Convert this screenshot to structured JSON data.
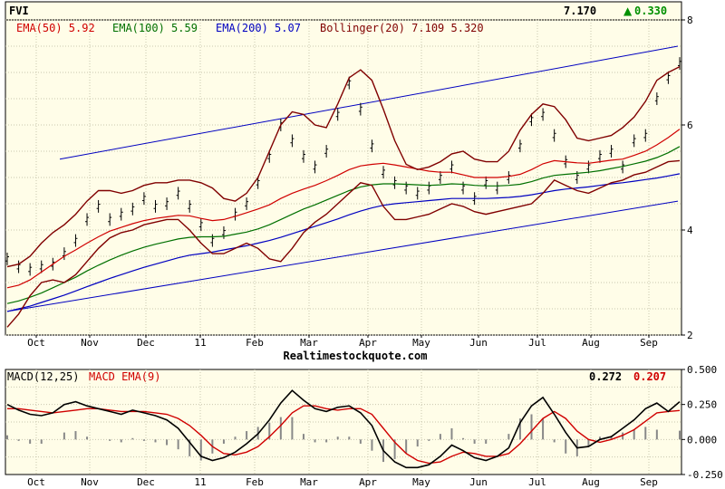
{
  "chart_data": [
    {
      "type": "line",
      "title": "FVI",
      "last_price": "7.170",
      "change_arrow": "▲",
      "change": "0.330",
      "legend": [
        {
          "label": "EMA(50) 5.92",
          "color": "#d00000"
        },
        {
          "label": "EMA(100) 5.59",
          "color": "#007000"
        },
        {
          "label": "EMA(200) 5.07",
          "color": "#0000c0"
        },
        {
          "label": "Bollinger(20) 7.109 5.320",
          "color": "#800000"
        }
      ],
      "xlabel": "Realtimestockquote.com",
      "x_ticks": [
        "Oct",
        "Nov",
        "Dec",
        "11",
        "Feb",
        "Mar",
        "Apr",
        "May",
        "Jun",
        "Jul",
        "Aug",
        "Sep"
      ],
      "y_ticks": [
        2,
        4,
        6,
        8
      ],
      "ylim": [
        2,
        8
      ],
      "grid": true,
      "series": [
        {
          "name": "Price",
          "color": "#000000",
          "values": [
            3.45,
            3.3,
            3.25,
            3.3,
            3.35,
            3.55,
            3.8,
            4.2,
            4.45,
            4.2,
            4.3,
            4.4,
            4.6,
            4.45,
            4.5,
            4.7,
            4.45,
            4.1,
            3.8,
            3.95,
            4.3,
            4.5,
            4.9,
            5.4,
            6.0,
            5.7,
            5.4,
            5.2,
            5.5,
            6.2,
            6.8,
            6.3,
            5.6,
            5.1,
            4.9,
            4.8,
            4.7,
            4.8,
            5.0,
            5.2,
            4.8,
            4.6,
            4.9,
            4.8,
            5.0,
            5.6,
            6.1,
            6.2,
            5.8,
            5.3,
            5.0,
            5.2,
            5.4,
            5.5,
            5.2,
            5.7,
            5.8,
            6.5,
            6.9,
            7.17
          ]
        },
        {
          "name": "EMA(50)",
          "color": "#d00000",
          "values": [
            2.9,
            2.95,
            3.05,
            3.2,
            3.35,
            3.5,
            3.62,
            3.75,
            3.87,
            3.98,
            4.05,
            4.12,
            4.18,
            4.22,
            4.25,
            4.28,
            4.27,
            4.22,
            4.18,
            4.2,
            4.26,
            4.33,
            4.4,
            4.48,
            4.6,
            4.7,
            4.78,
            4.85,
            4.94,
            5.04,
            5.15,
            5.22,
            5.25,
            5.27,
            5.24,
            5.2,
            5.16,
            5.12,
            5.1,
            5.1,
            5.05,
            5.0,
            5.0,
            5.0,
            5.02,
            5.06,
            5.15,
            5.26,
            5.32,
            5.3,
            5.28,
            5.27,
            5.3,
            5.33,
            5.35,
            5.42,
            5.5,
            5.62,
            5.76,
            5.92
          ]
        },
        {
          "name": "EMA(100)",
          "color": "#007000",
          "values": [
            2.6,
            2.65,
            2.72,
            2.8,
            2.9,
            3.0,
            3.1,
            3.22,
            3.33,
            3.43,
            3.52,
            3.6,
            3.67,
            3.73,
            3.78,
            3.83,
            3.86,
            3.87,
            3.87,
            3.88,
            3.92,
            3.96,
            4.02,
            4.1,
            4.2,
            4.3,
            4.4,
            4.48,
            4.57,
            4.66,
            4.75,
            4.82,
            4.86,
            4.88,
            4.88,
            4.87,
            4.86,
            4.85,
            4.86,
            4.88,
            4.87,
            4.85,
            4.84,
            4.84,
            4.85,
            4.87,
            4.92,
            4.99,
            5.04,
            5.06,
            5.08,
            5.1,
            5.13,
            5.17,
            5.21,
            5.26,
            5.31,
            5.38,
            5.47,
            5.59
          ]
        },
        {
          "name": "EMA(200)",
          "color": "#0000c0",
          "values": [
            2.45,
            2.5,
            2.55,
            2.62,
            2.69,
            2.76,
            2.84,
            2.92,
            3.0,
            3.08,
            3.15,
            3.22,
            3.29,
            3.35,
            3.41,
            3.47,
            3.52,
            3.55,
            3.58,
            3.62,
            3.66,
            3.7,
            3.75,
            3.8,
            3.86,
            3.93,
            4.0,
            4.07,
            4.14,
            4.21,
            4.29,
            4.36,
            4.42,
            4.47,
            4.5,
            4.52,
            4.54,
            4.56,
            4.58,
            4.6,
            4.6,
            4.6,
            4.6,
            4.61,
            4.62,
            4.64,
            4.67,
            4.71,
            4.75,
            4.78,
            4.8,
            4.82,
            4.85,
            4.88,
            4.9,
            4.93,
            4.96,
            4.99,
            5.03,
            5.07
          ]
        },
        {
          "name": "Bollinger upper",
          "color": "#800000",
          "values": [
            3.3,
            3.35,
            3.5,
            3.75,
            3.95,
            4.1,
            4.3,
            4.55,
            4.75,
            4.75,
            4.7,
            4.75,
            4.85,
            4.9,
            4.9,
            4.95,
            4.95,
            4.9,
            4.8,
            4.6,
            4.55,
            4.7,
            5.0,
            5.5,
            6.0,
            6.25,
            6.2,
            6.0,
            5.95,
            6.4,
            6.9,
            7.05,
            6.85,
            6.3,
            5.7,
            5.25,
            5.15,
            5.2,
            5.3,
            5.45,
            5.5,
            5.35,
            5.3,
            5.3,
            5.5,
            5.9,
            6.2,
            6.4,
            6.35,
            6.1,
            5.75,
            5.7,
            5.75,
            5.8,
            5.95,
            6.15,
            6.45,
            6.85,
            7.0,
            7.11
          ]
        },
        {
          "name": "Bollinger lower",
          "color": "#800000",
          "values": [
            2.15,
            2.4,
            2.75,
            3.0,
            3.05,
            3.0,
            3.15,
            3.4,
            3.65,
            3.85,
            3.95,
            4.0,
            4.1,
            4.15,
            4.2,
            4.2,
            4.0,
            3.75,
            3.55,
            3.55,
            3.65,
            3.75,
            3.65,
            3.45,
            3.4,
            3.65,
            3.95,
            4.15,
            4.3,
            4.5,
            4.7,
            4.9,
            4.85,
            4.45,
            4.2,
            4.2,
            4.25,
            4.3,
            4.4,
            4.5,
            4.45,
            4.35,
            4.3,
            4.35,
            4.4,
            4.45,
            4.5,
            4.7,
            4.95,
            4.85,
            4.75,
            4.7,
            4.8,
            4.9,
            4.95,
            5.05,
            5.1,
            5.2,
            5.3,
            5.32
          ]
        }
      ]
    },
    {
      "type": "line",
      "title": "MACD(12,25)",
      "legend": [
        {
          "label": "MACD(12,25)",
          "color": "#000000"
        },
        {
          "label": "MACD EMA(9)",
          "color": "#d00000"
        }
      ],
      "value_macd": "0.272",
      "value_signal": "0.207",
      "x_ticks": [
        "Oct",
        "Nov",
        "Dec",
        "11",
        "Feb",
        "Mar",
        "Apr",
        "May",
        "Jun",
        "Jul",
        "Aug",
        "Sep"
      ],
      "y_ticks": [
        "0.500",
        "0.250",
        "0.000",
        "-0.250"
      ],
      "ylim": [
        -0.25,
        0.5
      ],
      "series": [
        {
          "name": "MACD(12,25)",
          "color": "#000000",
          "values": [
            0.25,
            0.21,
            0.18,
            0.17,
            0.19,
            0.25,
            0.27,
            0.24,
            0.22,
            0.2,
            0.18,
            0.21,
            0.19,
            0.17,
            0.14,
            0.08,
            -0.02,
            -0.12,
            -0.15,
            -0.13,
            -0.09,
            -0.03,
            0.04,
            0.14,
            0.26,
            0.35,
            0.28,
            0.22,
            0.2,
            0.23,
            0.24,
            0.19,
            0.1,
            -0.08,
            -0.16,
            -0.2,
            -0.2,
            -0.18,
            -0.12,
            -0.04,
            -0.08,
            -0.13,
            -0.15,
            -0.12,
            -0.06,
            0.12,
            0.24,
            0.3,
            0.18,
            0.05,
            -0.06,
            -0.05,
            0.0,
            0.02,
            0.08,
            0.14,
            0.22,
            0.26,
            0.2,
            0.27
          ]
        },
        {
          "name": "MACD EMA(9)",
          "color": "#d00000",
          "values": [
            0.22,
            0.22,
            0.21,
            0.2,
            0.19,
            0.2,
            0.21,
            0.22,
            0.22,
            0.21,
            0.2,
            0.2,
            0.2,
            0.19,
            0.18,
            0.15,
            0.1,
            0.03,
            -0.05,
            -0.1,
            -0.11,
            -0.09,
            -0.05,
            0.02,
            0.1,
            0.19,
            0.24,
            0.24,
            0.22,
            0.21,
            0.22,
            0.22,
            0.18,
            0.08,
            -0.02,
            -0.1,
            -0.15,
            -0.17,
            -0.16,
            -0.12,
            -0.09,
            -0.1,
            -0.12,
            -0.12,
            -0.1,
            -0.03,
            0.06,
            0.15,
            0.2,
            0.15,
            0.06,
            0.0,
            -0.02,
            0.0,
            0.03,
            0.07,
            0.13,
            0.19,
            0.2,
            0.207
          ]
        }
      ]
    }
  ]
}
